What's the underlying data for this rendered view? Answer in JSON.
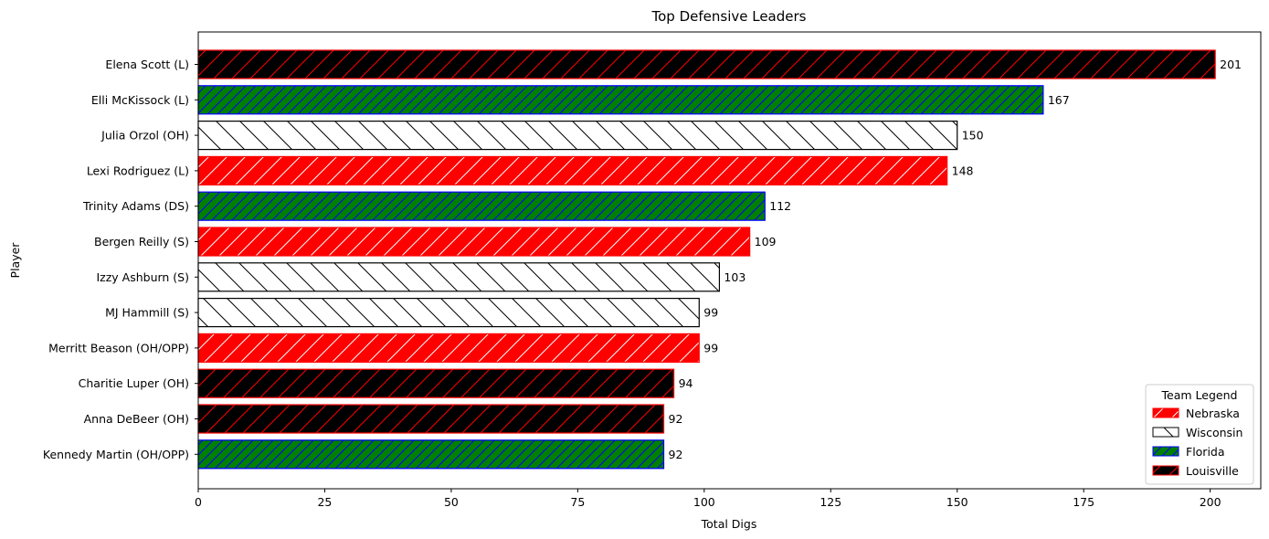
{
  "chart_data": {
    "type": "bar",
    "orientation": "horizontal",
    "title": "Top Defensive Leaders",
    "xlabel": "Total Digs",
    "ylabel": "Player",
    "xlim": [
      0,
      210
    ],
    "xticks": [
      0,
      25,
      50,
      75,
      100,
      125,
      150,
      175,
      200
    ],
    "grid": false,
    "legend_title": "Team Legend",
    "legend_position": "lower-right",
    "teams": [
      {
        "name": "Nebraska",
        "fill": "#ff0000",
        "edge": "#ff0000",
        "hatch_color": "#ffffff",
        "hatch": "forward-slash"
      },
      {
        "name": "Wisconsin",
        "fill": "#ffffff",
        "edge": "#000000",
        "hatch_color": "#000000",
        "hatch": "back-slash"
      },
      {
        "name": "Florida",
        "fill": "#008000",
        "edge": "#0000ff",
        "hatch_color": "#0000ff",
        "hatch": "forward-slash-dense"
      },
      {
        "name": "Louisville",
        "fill": "#000000",
        "edge": "#ff0000",
        "hatch_color": "#ff0000",
        "hatch": "forward-slash"
      }
    ],
    "bars": [
      {
        "player": "Elena Scott (L)",
        "value": 201,
        "team": "Louisville"
      },
      {
        "player": "Elli McKissock (L)",
        "value": 167,
        "team": "Florida"
      },
      {
        "player": "Julia Orzol (OH)",
        "value": 150,
        "team": "Wisconsin"
      },
      {
        "player": "Lexi Rodriguez (L)",
        "value": 148,
        "team": "Nebraska"
      },
      {
        "player": "Trinity Adams (DS)",
        "value": 112,
        "team": "Florida"
      },
      {
        "player": "Bergen Reilly (S)",
        "value": 109,
        "team": "Nebraska"
      },
      {
        "player": "Izzy Ashburn (S)",
        "value": 103,
        "team": "Wisconsin"
      },
      {
        "player": "MJ Hammill (S)",
        "value": 99,
        "team": "Wisconsin"
      },
      {
        "player": "Merritt Beason (OH/OPP)",
        "value": 99,
        "team": "Nebraska"
      },
      {
        "player": "Charitie Luper (OH)",
        "value": 94,
        "team": "Louisville"
      },
      {
        "player": "Anna DeBeer (OH)",
        "value": 92,
        "team": "Louisville"
      },
      {
        "player": "Kennedy Martin (OH/OPP)",
        "value": 92,
        "team": "Florida"
      }
    ]
  }
}
